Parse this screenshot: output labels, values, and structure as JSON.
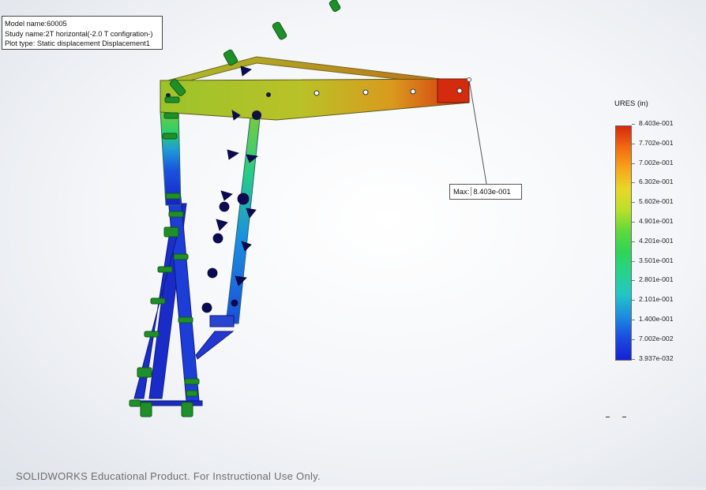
{
  "info": {
    "model_name": "Model name:60005",
    "study_name": "Study name:2T horizontal(-2.0 T configration-)",
    "plot_type": "Plot type: Static displacement Displacement1"
  },
  "legend": {
    "title": "URES (in)",
    "labels": [
      "8.403e-001",
      "7.702e-001",
      "7.002e-001",
      "6.302e-001",
      "5.602e-001",
      "4.901e-001",
      "4.201e-001",
      "3.501e-001",
      "2.801e-001",
      "2.101e-001",
      "1.400e-001",
      "7.002e-002",
      "3.937e-032"
    ]
  },
  "probe": {
    "prefix": "Max:",
    "value": "8.403e-001"
  },
  "watermark": "SOLIDWORKS Educational Product. For Instructional Use Only.",
  "colors": {
    "max": "#d42a0e",
    "mid": "#9ccc2a",
    "min": "#1620d4",
    "fixture": "#1f8f2a",
    "load_arrow": "#0a0a5a"
  }
}
